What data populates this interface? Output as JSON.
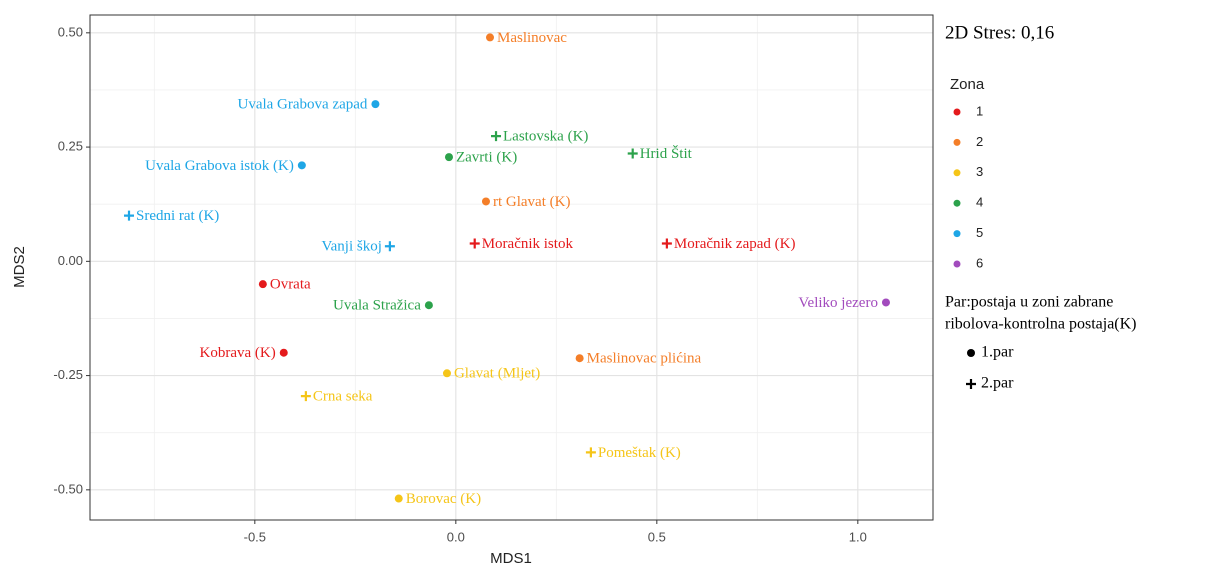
{
  "chart_data": {
    "type": "scatter",
    "annotation": "2D Stres: 0,16",
    "x_label": "MDS1",
    "y_label": "MDS2",
    "xlim": [
      -0.91,
      1.187
    ],
    "ylim": [
      -0.566,
      0.539
    ],
    "xticks": [
      {
        "value": -0.5,
        "label": "-0.5"
      },
      {
        "value": 0,
        "label": "0.0"
      },
      {
        "value": 0.5,
        "label": "0.5"
      },
      {
        "value": 1,
        "label": "1.0"
      }
    ],
    "yticks": [
      {
        "value": -0.5,
        "label": "-0.50"
      },
      {
        "value": -0.25,
        "label": "-0.25"
      },
      {
        "value": 0,
        "label": "0.00"
      },
      {
        "value": 0.25,
        "label": "0.25"
      },
      {
        "value": 0.5,
        "label": "0.50"
      }
    ],
    "grid": true,
    "minor_grid": true,
    "zone_title": "Zona",
    "zones": [
      {
        "name": "1",
        "color": "#e41a1c"
      },
      {
        "name": "2",
        "color": "#f47e28"
      },
      {
        "name": "3",
        "color": "#f5c518"
      },
      {
        "name": "4",
        "color": "#2ca24b"
      },
      {
        "name": "5",
        "color": "#1ea6e6"
      },
      {
        "name": "6",
        "color": "#a24bbd"
      }
    ],
    "par_title": [
      "Par:postaja u zoni zabrane",
      "ribolova-kontrolna postaja(K)"
    ],
    "pars": [
      {
        "name": "1.par",
        "shape": "circle"
      },
      {
        "name": "2.par",
        "shape": "plus"
      }
    ],
    "points": [
      {
        "label": "Maslinovac",
        "x": 0.085,
        "y": 0.49,
        "zone": "2",
        "par": "1.par"
      },
      {
        "label": "Uvala Grabova zapad",
        "x": -0.2,
        "y": 0.344,
        "zone": "5",
        "par": "1.par"
      },
      {
        "label": "Lastovska (K)",
        "x": 0.1,
        "y": 0.274,
        "zone": "4",
        "par": "2.par"
      },
      {
        "label": "Hrid Štit",
        "x": 0.44,
        "y": 0.236,
        "zone": "4",
        "par": "2.par"
      },
      {
        "label": "Uvala Grabova istok (K)",
        "x": -0.383,
        "y": 0.21,
        "zone": "5",
        "par": "1.par"
      },
      {
        "label": "Zavrti (K)",
        "x": -0.017,
        "y": 0.228,
        "zone": "4",
        "par": "1.par"
      },
      {
        "label": "rt Glavat (K)",
        "x": 0.075,
        "y": 0.131,
        "zone": "2",
        "par": "1.par"
      },
      {
        "label": "Sredni rat (K)",
        "x": -0.813,
        "y": 0.1,
        "zone": "5",
        "par": "2.par"
      },
      {
        "label": "Vanji škoj",
        "x": -0.164,
        "y": 0.033,
        "zone": "5",
        "par": "2.par"
      },
      {
        "label": "Moračnik istok",
        "x": 0.047,
        "y": 0.039,
        "zone": "1",
        "par": "2.par"
      },
      {
        "label": "Moračnik zapad (K)",
        "x": 0.525,
        "y": 0.039,
        "zone": "1",
        "par": "2.par"
      },
      {
        "label": "Ovrata",
        "x": -0.48,
        "y": -0.05,
        "zone": "1",
        "par": "1.par"
      },
      {
        "label": "Uvala Stražica",
        "x": -0.067,
        "y": -0.096,
        "zone": "4",
        "par": "1.par"
      },
      {
        "label": "Veliko jezero",
        "x": 1.07,
        "y": -0.09,
        "zone": "6",
        "par": "1.par"
      },
      {
        "label": "Kobrava (K)",
        "x": -0.428,
        "y": -0.2,
        "zone": "1",
        "par": "1.par"
      },
      {
        "label": "Maslinovac plićina",
        "x": 0.308,
        "y": -0.212,
        "zone": "2",
        "par": "1.par"
      },
      {
        "label": "Glavat (Mljet)",
        "x": -0.022,
        "y": -0.245,
        "zone": "3",
        "par": "1.par"
      },
      {
        "label": "Crna seka",
        "x": -0.373,
        "y": -0.295,
        "zone": "3",
        "par": "2.par"
      },
      {
        "label": "Pomeštak (K)",
        "x": 0.336,
        "y": -0.418,
        "zone": "3",
        "par": "2.par"
      },
      {
        "label": "Borovac (K)",
        "x": -0.142,
        "y": -0.519,
        "zone": "3",
        "par": "1.par"
      }
    ]
  }
}
